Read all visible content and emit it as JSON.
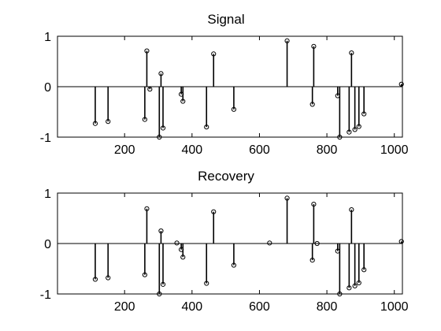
{
  "chart_data": [
    {
      "type": "stem",
      "title": "Signal",
      "xlabel": "",
      "ylabel": "",
      "xlim": [
        1,
        1024
      ],
      "ylim": [
        -1,
        1
      ],
      "xticks": [
        200,
        400,
        600,
        800,
        1000
      ],
      "yticks": [
        -1,
        0,
        1
      ],
      "grid": false,
      "points": [
        {
          "x": 113,
          "y": -0.73
        },
        {
          "x": 151,
          "y": -0.69
        },
        {
          "x": 260,
          "y": -0.65
        },
        {
          "x": 266,
          "y": 0.71
        },
        {
          "x": 275,
          "y": -0.05
        },
        {
          "x": 303,
          "y": -1.0
        },
        {
          "x": 308,
          "y": 0.26
        },
        {
          "x": 314,
          "y": -0.82
        },
        {
          "x": 368,
          "y": -0.15
        },
        {
          "x": 373,
          "y": -0.29
        },
        {
          "x": 443,
          "y": -0.8
        },
        {
          "x": 464,
          "y": 0.65
        },
        {
          "x": 524,
          "y": -0.45
        },
        {
          "x": 682,
          "y": 0.91
        },
        {
          "x": 757,
          "y": -0.35
        },
        {
          "x": 761,
          "y": 0.8
        },
        {
          "x": 832,
          "y": -0.18
        },
        {
          "x": 838,
          "y": -1.0
        },
        {
          "x": 866,
          "y": -0.9
        },
        {
          "x": 873,
          "y": 0.67
        },
        {
          "x": 883,
          "y": -0.85
        },
        {
          "x": 895,
          "y": -0.79
        },
        {
          "x": 910,
          "y": -0.54
        },
        {
          "x": 1021,
          "y": 0.05
        }
      ]
    },
    {
      "type": "stem",
      "title": "Recovery",
      "xlabel": "",
      "ylabel": "",
      "xlim": [
        1,
        1024
      ],
      "ylim": [
        -1,
        1
      ],
      "xticks": [
        200,
        400,
        600,
        800,
        1000
      ],
      "yticks": [
        -1,
        0,
        1
      ],
      "grid": false,
      "points": [
        {
          "x": 113,
          "y": -0.71
        },
        {
          "x": 151,
          "y": -0.68
        },
        {
          "x": 260,
          "y": -0.62
        },
        {
          "x": 266,
          "y": 0.69
        },
        {
          "x": 303,
          "y": -1.0
        },
        {
          "x": 308,
          "y": 0.25
        },
        {
          "x": 314,
          "y": -0.81
        },
        {
          "x": 355,
          "y": 0.01
        },
        {
          "x": 368,
          "y": -0.12
        },
        {
          "x": 373,
          "y": -0.27
        },
        {
          "x": 443,
          "y": -0.79
        },
        {
          "x": 464,
          "y": 0.63
        },
        {
          "x": 524,
          "y": -0.43
        },
        {
          "x": 630,
          "y": 0.01
        },
        {
          "x": 682,
          "y": 0.9
        },
        {
          "x": 757,
          "y": -0.33
        },
        {
          "x": 761,
          "y": 0.78
        },
        {
          "x": 771,
          "y": 0.0
        },
        {
          "x": 832,
          "y": -0.15
        },
        {
          "x": 838,
          "y": -1.0
        },
        {
          "x": 866,
          "y": -0.88
        },
        {
          "x": 873,
          "y": 0.67
        },
        {
          "x": 883,
          "y": -0.84
        },
        {
          "x": 895,
          "y": -0.78
        },
        {
          "x": 910,
          "y": -0.52
        },
        {
          "x": 1021,
          "y": 0.04
        }
      ]
    }
  ]
}
